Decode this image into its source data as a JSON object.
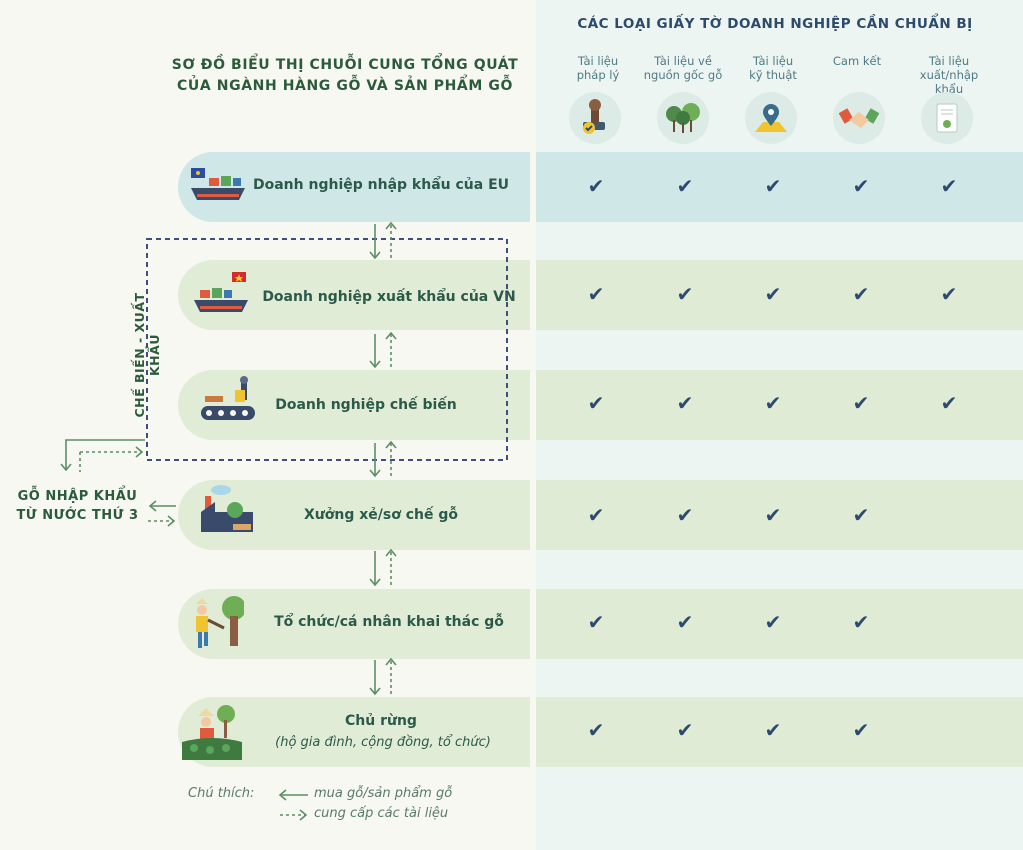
{
  "left_title": [
    "SƠ ĐỒ BIỂU THỊ CHUỖI CUNG TỔNG QUÁT",
    "CỦA NGÀNH HÀNG GỖ VÀ SẢN PHẨM GỖ"
  ],
  "right_title": "CÁC LOẠI GIẤY TỜ DOANH NGHIỆP CẦN CHUẨN BỊ",
  "doc_columns": [
    {
      "label": [
        "Tài liệu",
        "pháp lý"
      ],
      "icon": "legal-stamp-icon"
    },
    {
      "label": [
        "Tài liệu về",
        "nguồn gốc gỗ"
      ],
      "icon": "forest-icon"
    },
    {
      "label": [
        "Tài liệu",
        "kỹ thuật"
      ],
      "icon": "location-map-icon"
    },
    {
      "label": [
        "Cam kết"
      ],
      "icon": "handshake-icon"
    },
    {
      "label": [
        "Tài liệu",
        "xuất/nhập khẩu"
      ],
      "icon": "document-icon"
    }
  ],
  "chain": [
    {
      "name": "Doanh nghiệp nhập khẩu của EU",
      "icon": "eu-cargo-ship-icon",
      "color": "#cfe7e6",
      "checks": [
        true,
        true,
        true,
        true,
        true
      ]
    },
    {
      "name": "Doanh nghiệp xuất khẩu của VN",
      "icon": "vn-cargo-ship-icon",
      "color": "#e0ecd6",
      "checks": [
        true,
        true,
        true,
        true,
        true
      ]
    },
    {
      "name": "Doanh nghiệp chế biến",
      "icon": "processing-machine-icon",
      "color": "#e0ecd6",
      "checks": [
        true,
        true,
        true,
        true,
        true
      ]
    },
    {
      "name": "Xưởng xẻ/sơ chế gỗ",
      "icon": "sawmill-icon",
      "color": "#e0ecd6",
      "checks": [
        true,
        true,
        true,
        true,
        false
      ]
    },
    {
      "name": "Tổ chức/cá nhân khai thác gỗ",
      "icon": "logger-icon",
      "color": "#e0ecd6",
      "checks": [
        true,
        true,
        true,
        true,
        false
      ]
    },
    {
      "name": "Chủ rừng",
      "subtitle": "(hộ gia đình, cộng đồng, tổ chức)",
      "icon": "forest-owner-icon",
      "color": "#e0ecd6",
      "checks": [
        true,
        true,
        true,
        true,
        false
      ]
    }
  ],
  "check_symbol": "✔",
  "processing_export_label": "CHẾ BIẾN - XUẤT KHẨU",
  "third_country_label": [
    "GỖ NHẬP KHẨU",
    "TỪ NƯỚC THỨ 3"
  ],
  "legend": {
    "title": "Chú thích:",
    "solid": "mua gỗ/sản phẩm gỗ",
    "dashed": "cung cấp các tài liệu"
  },
  "colors": {
    "right_panel": "#edf5f2",
    "left_bg": "#f7f8f1",
    "arrow_green": "#5d8e66",
    "dashed_box": "#3d4f7a",
    "check": "#2e4b6e"
  }
}
